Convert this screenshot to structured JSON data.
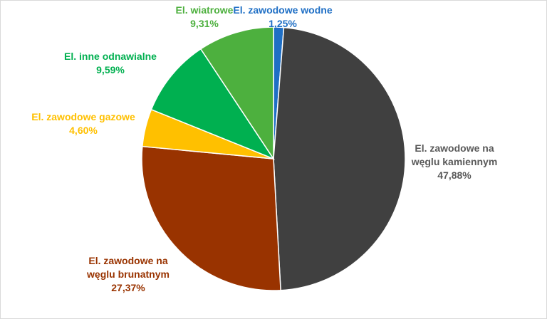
{
  "chart_data": {
    "type": "pie",
    "slices": [
      {
        "name": "El. zawodowe wodne",
        "name_lines": [
          "El. zawodowe wodne"
        ],
        "label": "1,25%",
        "value": 1.25,
        "color": "#1F6FC5"
      },
      {
        "name": "El. zawodowe na węglu kamiennym",
        "name_lines": [
          "El. zawodowe na",
          "węglu kamiennym"
        ],
        "label": "47,88%",
        "value": 47.88,
        "color": "#404040",
        "label_color": "#595959"
      },
      {
        "name": "El. zawodowe na węglu brunatnym",
        "name_lines": [
          "El. zawodowe na",
          "węglu brunatnym"
        ],
        "label": "27,37%",
        "value": 27.37,
        "color": "#993300"
      },
      {
        "name": "El. zawodowe gazowe",
        "name_lines": [
          "El. zawodowe gazowe"
        ],
        "label": "4,60%",
        "value": 4.6,
        "color": "#FFC000"
      },
      {
        "name": "El. inne odnawialne",
        "name_lines": [
          "El. inne odnawialne"
        ],
        "label": "9,59%",
        "value": 9.59,
        "color": "#00B050"
      },
      {
        "name": "El. wiatrowe",
        "name_lines": [
          "El. wiatrowe"
        ],
        "label": "9,31%",
        "value": 9.31,
        "color": "#4DB03E"
      }
    ]
  }
}
